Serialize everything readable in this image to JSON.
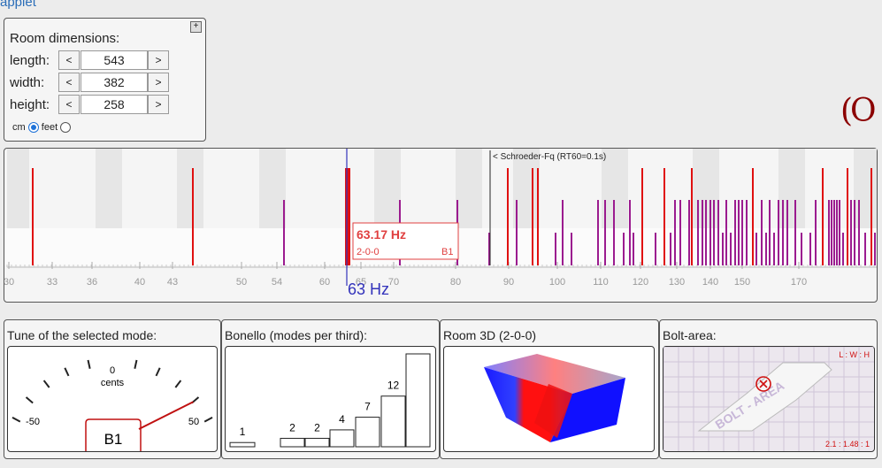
{
  "applet_label": "applet",
  "room": {
    "title": "Room dimensions:",
    "rows": [
      {
        "label": "length:",
        "value": "543"
      },
      {
        "label": "width:",
        "value": "382"
      },
      {
        "label": "height:",
        "value": "258"
      }
    ],
    "dec_label": "<",
    "inc_label": ">",
    "unit_cm": "cm",
    "unit_feet": "feet",
    "selected_unit": "cm",
    "expand_label": "+"
  },
  "logo_text": "(O",
  "spectrum": {
    "schroeder_label": "< Schroeder-Fq (RT60=0.1s)",
    "selected_freq_label": "63 Hz",
    "tooltip": {
      "freq": "63.17 Hz",
      "mode": "2-0-0",
      "band": "B1"
    },
    "tick_labels": [
      "30",
      "33",
      "36",
      "40",
      "43",
      "50",
      "54",
      "60",
      "65",
      "70",
      "80",
      "90",
      "100",
      "110",
      "120",
      "130",
      "140",
      "150",
      "170"
    ],
    "colors": {
      "axial": "#e01010",
      "other": "#9b1b8f",
      "cursor": "#3333bb"
    }
  },
  "tune": {
    "title": "Tune of the selected mode:",
    "zero": "0",
    "unit": "cents",
    "min": "-50",
    "max": "50",
    "band": "B1",
    "cents_value": 40
  },
  "bonello": {
    "title": "Bonello (modes per third):",
    "counts": [
      1,
      2,
      2,
      4,
      7,
      12,
      22
    ]
  },
  "room3d": {
    "title": "Room 3D (2-0-0)"
  },
  "bolt": {
    "title": "Bolt-area:",
    "ratio_header": "L : W : H",
    "ratio_value": "2.1 : 1.48 : 1",
    "watermark": "BOLT - AREA"
  }
}
